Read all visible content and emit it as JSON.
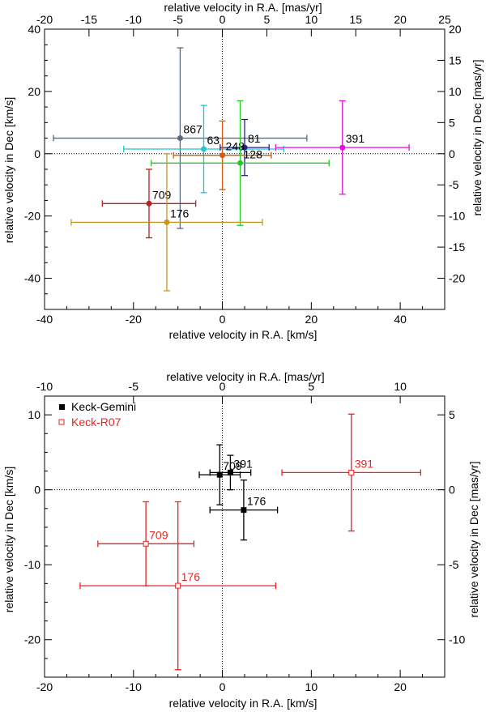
{
  "chart_data": [
    {
      "type": "scatter",
      "xlabel": "relative velocity in R.A. [km/s]",
      "ylabel": "relative velocity in Dec [km/s]",
      "x2label": "relative velocity in R.A. [mas/yr]",
      "y2label": "relative velocity in Dec [mas/yr]",
      "xlim": [
        -40,
        50
      ],
      "ylim": [
        -50,
        40
      ],
      "x2lim": [
        -20,
        25
      ],
      "y2lim": [
        -25,
        20
      ],
      "xticks": [
        -40,
        -20,
        0,
        20,
        40
      ],
      "yticks": [
        -40,
        -20,
        0,
        20,
        40
      ],
      "x2ticks": [
        -20,
        -15,
        -10,
        -5,
        0,
        5,
        10,
        15,
        20,
        25
      ],
      "y2ticks": [
        -20,
        -15,
        -10,
        -5,
        0,
        5,
        10,
        15,
        20
      ],
      "zero_lines": true,
      "points": [
        {
          "name": "867",
          "x": -9.5,
          "y": 5,
          "xerr": 28.5,
          "yerr": 29,
          "color": "#5a6a78"
        },
        {
          "name": "63",
          "x": -4.2,
          "y": 1.5,
          "xerr": 18,
          "yerr": 14,
          "color": "#22c4d2"
        },
        {
          "name": "81",
          "x": 5,
          "y": 2,
          "xerr": 5.5,
          "yerr": 9,
          "color": "#22228a"
        },
        {
          "name": "248",
          "x": 0,
          "y": -0.5,
          "xerr": 11,
          "yerr": 11,
          "color": "#d75a10"
        },
        {
          "name": "128",
          "x": 4,
          "y": -3,
          "xerr": 20,
          "yerr": 20,
          "color": "#22cc22"
        },
        {
          "name": "391",
          "x": 27,
          "y": 2,
          "xerr": 15,
          "yerr": 15,
          "color": "#e010d8"
        },
        {
          "name": "709",
          "x": -16.5,
          "y": -16,
          "xerr": 10.5,
          "yerr": 11,
          "color": "#b22222"
        },
        {
          "name": "176",
          "x": -12.5,
          "y": -22,
          "xerr": 21.5,
          "yerr": 22,
          "color": "#c8961e"
        }
      ]
    },
    {
      "type": "scatter",
      "xlabel": "relative velocity in R.A. [km/s]",
      "ylabel": "relative velocity in Dec [km/s]",
      "x2label": "relative velocity in R.A. [mas/yr]",
      "y2label": "relative velocity in Dec [mas/yr]",
      "xlim": [
        -20,
        25
      ],
      "ylim": [
        -25,
        12.5
      ],
      "x2lim": [
        -10,
        12.5
      ],
      "y2lim": [
        -12.5,
        6.25
      ],
      "xticks": [
        -20,
        -10,
        0,
        10,
        20
      ],
      "yticks": [
        -20,
        -10,
        0,
        10
      ],
      "x2ticks": [
        -10,
        -5,
        0,
        5,
        10
      ],
      "y2ticks": [
        -10,
        -5,
        0,
        5
      ],
      "zero_lines": true,
      "legend": {
        "placement": "top-left",
        "entries": [
          {
            "name": "Keck-Gemini",
            "color": "#000000",
            "marker": "filled-square"
          },
          {
            "name": "Keck-R07",
            "color": "#ee2222",
            "marker": "open-square"
          }
        ]
      },
      "series": [
        {
          "name": "Keck-Gemini",
          "color": "#000000",
          "marker": "filled-square",
          "points": [
            {
              "name": "709",
              "x": -0.3,
              "y": 2,
              "xerr": 2.3,
              "yerr": 4
            },
            {
              "name": "391",
              "x": 0.9,
              "y": 2.3,
              "xerr": 2.3,
              "yerr": 2.3
            },
            {
              "name": "176",
              "x": 2.4,
              "y": -2.7,
              "xerr": 3.8,
              "yerr": 4
            }
          ]
        },
        {
          "name": "Keck-R07",
          "color": "#ee2222",
          "marker": "open-square",
          "points": [
            {
              "name": "391",
              "x": 14.5,
              "y": 2.3,
              "xerr": 7.8,
              "yerr": 7.8
            },
            {
              "name": "709",
              "x": -8.6,
              "y": -7.2,
              "xerr": 5.4,
              "yerr": 5.6
            },
            {
              "name": "176",
              "x": -5,
              "y": -12.8,
              "xerr": 11,
              "yerr": 11.2
            }
          ]
        }
      ]
    }
  ]
}
